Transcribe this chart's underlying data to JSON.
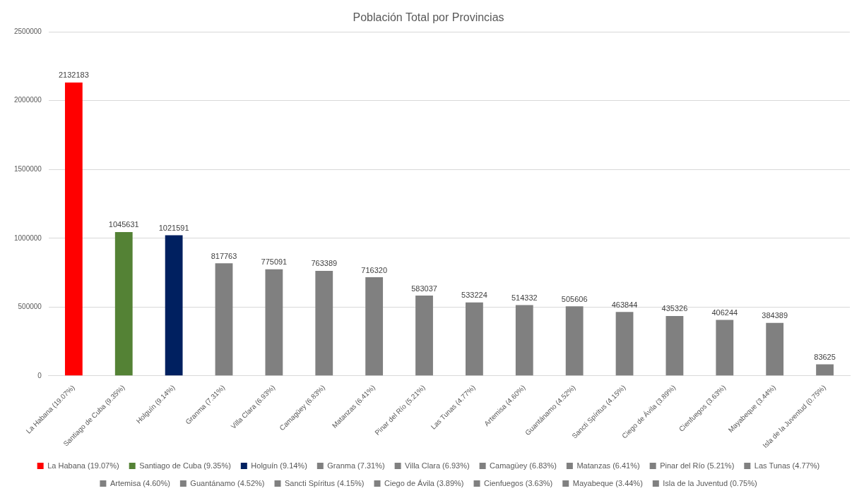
{
  "chart_data": {
    "type": "bar",
    "title": "Población Total por Provincias",
    "categories": [
      "La Habana (19.07%)",
      "Santiago de Cuba (9.35%)",
      "Holguín (9.14%)",
      "Granma (7.31%)",
      "Villa Clara (6.93%)",
      "Camagüey (6.83%)",
      "Matanzas (6.41%)",
      "Pinar del Río (5.21%)",
      "Las Tunas (4.77%)",
      "Artemisa (4.60%)",
      "Guantánamo (4.52%)",
      "Sancti Spíritus (4.15%)",
      "Ciego de Ávila (3.89%)",
      "Cienfuegos (3.63%)",
      "Mayabeque (3.44%)",
      "Isla de la Juventud (0.75%)"
    ],
    "series": [
      {
        "name": "La Habana (19.07%)",
        "color": "#ff0000",
        "values": [
          2132183,
          null,
          null,
          null,
          null,
          null,
          null,
          null,
          null,
          null,
          null,
          null,
          null,
          null,
          null,
          null
        ]
      },
      {
        "name": "Santiago de Cuba (9.35%)",
        "color": "#548235",
        "values": [
          null,
          1045631,
          null,
          null,
          null,
          null,
          null,
          null,
          null,
          null,
          null,
          null,
          null,
          null,
          null,
          null
        ]
      },
      {
        "name": "Holguín (9.14%)",
        "color": "#002060",
        "values": [
          null,
          null,
          1021591,
          null,
          null,
          null,
          null,
          null,
          null,
          null,
          null,
          null,
          null,
          null,
          null,
          null
        ]
      },
      {
        "name": "Granma (7.31%)",
        "color": "#808080",
        "values": [
          null,
          null,
          null,
          817763,
          null,
          null,
          null,
          null,
          null,
          null,
          null,
          null,
          null,
          null,
          null,
          null
        ]
      },
      {
        "name": "Villa Clara (6.93%)",
        "color": "#808080",
        "values": [
          null,
          null,
          null,
          null,
          775091,
          null,
          null,
          null,
          null,
          null,
          null,
          null,
          null,
          null,
          null,
          null
        ]
      },
      {
        "name": "Camagüey (6.83%)",
        "color": "#808080",
        "values": [
          null,
          null,
          null,
          null,
          null,
          763389,
          null,
          null,
          null,
          null,
          null,
          null,
          null,
          null,
          null,
          null
        ]
      },
      {
        "name": "Matanzas (6.41%)",
        "color": "#808080",
        "values": [
          null,
          null,
          null,
          null,
          null,
          null,
          716320,
          null,
          null,
          null,
          null,
          null,
          null,
          null,
          null,
          null
        ]
      },
      {
        "name": "Pinar del Río (5.21%)",
        "color": "#808080",
        "values": [
          null,
          null,
          null,
          null,
          null,
          null,
          null,
          583037,
          null,
          null,
          null,
          null,
          null,
          null,
          null,
          null
        ]
      },
      {
        "name": "Las Tunas (4.77%)",
        "color": "#808080",
        "values": [
          null,
          null,
          null,
          null,
          null,
          null,
          null,
          null,
          533224,
          null,
          null,
          null,
          null,
          null,
          null,
          null
        ]
      },
      {
        "name": "Artemisa (4.60%)",
        "color": "#808080",
        "values": [
          null,
          null,
          null,
          null,
          null,
          null,
          null,
          null,
          null,
          514332,
          null,
          null,
          null,
          null,
          null,
          null
        ]
      },
      {
        "name": "Guantánamo (4.52%)",
        "color": "#808080",
        "values": [
          null,
          null,
          null,
          null,
          null,
          null,
          null,
          null,
          null,
          null,
          505606,
          null,
          null,
          null,
          null,
          null
        ]
      },
      {
        "name": "Sancti Spíritus (4.15%)",
        "color": "#808080",
        "values": [
          null,
          null,
          null,
          null,
          null,
          null,
          null,
          null,
          null,
          null,
          null,
          463844,
          null,
          null,
          null,
          null
        ]
      },
      {
        "name": "Ciego de Ávila (3.89%)",
        "color": "#808080",
        "values": [
          null,
          null,
          null,
          null,
          null,
          null,
          null,
          null,
          null,
          null,
          null,
          null,
          435326,
          null,
          null,
          null
        ]
      },
      {
        "name": "Cienfuegos (3.63%)",
        "color": "#808080",
        "values": [
          null,
          null,
          null,
          null,
          null,
          null,
          null,
          null,
          null,
          null,
          null,
          null,
          null,
          406244,
          null,
          null
        ]
      },
      {
        "name": "Mayabeque (3.44%)",
        "color": "#808080",
        "values": [
          null,
          null,
          null,
          null,
          null,
          null,
          null,
          null,
          null,
          null,
          null,
          null,
          null,
          null,
          384389,
          null
        ]
      },
      {
        "name": "Isla de la Juventud (0.75%)",
        "color": "#808080",
        "values": [
          null,
          null,
          null,
          null,
          null,
          null,
          null,
          null,
          null,
          null,
          null,
          null,
          null,
          null,
          null,
          83625
        ]
      }
    ],
    "ylim": [
      0,
      2500000
    ],
    "yticks": [
      0,
      500000,
      1000000,
      1500000,
      2000000,
      2500000
    ],
    "grid": "y",
    "legend": "bottom",
    "data_labels": true
  }
}
